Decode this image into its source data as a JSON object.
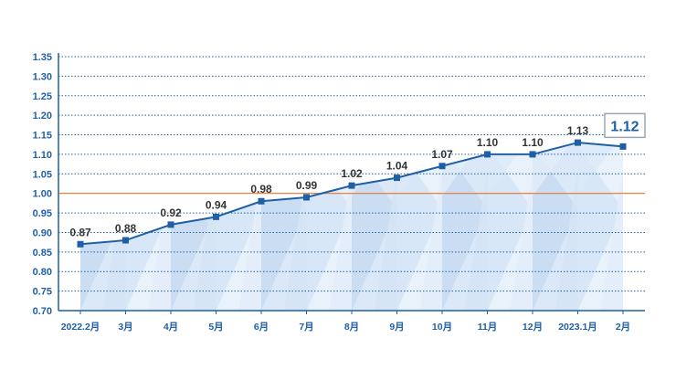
{
  "chart_data": {
    "type": "line",
    "categories": [
      "2022.2月",
      "3月",
      "4月",
      "5月",
      "6月",
      "7月",
      "8月",
      "9月",
      "10月",
      "11月",
      "12月",
      "2023.1月",
      "2月"
    ],
    "values": [
      0.87,
      0.88,
      0.92,
      0.94,
      0.98,
      0.99,
      1.02,
      1.04,
      1.07,
      1.1,
      1.1,
      1.13,
      1.12
    ],
    "data_labels": [
      "0.87",
      "0.88",
      "0.92",
      "0.94",
      "0.98",
      "0.99",
      "1.02",
      "1.04",
      "1.07",
      "1.10",
      "1.10",
      "1.13",
      "1.12"
    ],
    "highlight_label": "1.12",
    "reference_line": 1.0,
    "ylim": [
      0.7,
      1.35
    ],
    "yticks": [
      "0.70",
      "0.75",
      "0.80",
      "0.85",
      "0.90",
      "0.95",
      "1.00",
      "1.05",
      "1.10",
      "1.15",
      "1.20",
      "1.25",
      "1.30",
      "1.35"
    ],
    "grid": true,
    "colors": {
      "line": "#1f5fa6",
      "axis": "#1f5fa6",
      "text": "#1f5fa6",
      "reference": "#e8762c",
      "fill_light": "#e6f1fb",
      "fill_dark": "#c9dcf3",
      "label": "#333333"
    }
  }
}
